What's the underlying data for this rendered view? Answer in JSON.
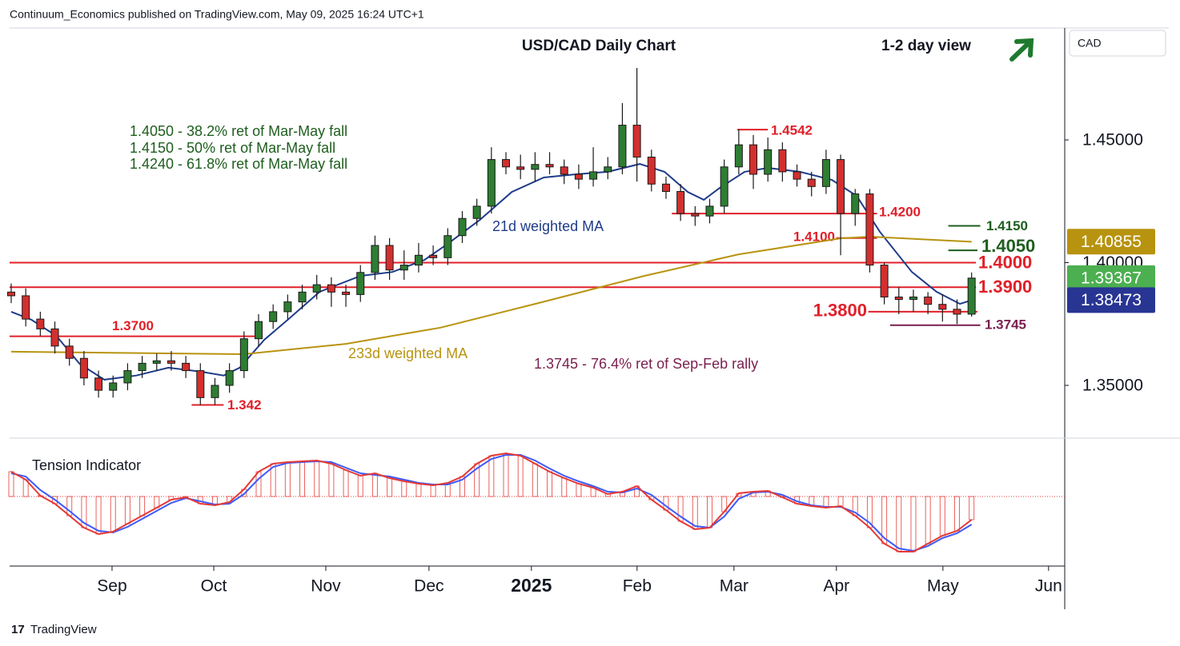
{
  "page": {
    "header": "Continuum_Economics published on TradingView.com, May 09, 2025 16:24 UTC+1",
    "footer": "TradingView"
  },
  "chart_data": [
    {
      "type": "candlestick",
      "title": "USD/CAD Daily Chart",
      "subtitle": "1-2 day view",
      "currency": "CAD",
      "x": [
        0,
        1,
        2,
        3,
        4,
        5,
        6,
        7,
        8,
        9,
        10,
        11,
        12,
        13,
        14,
        15,
        16,
        17,
        18,
        19,
        20,
        21,
        22,
        23,
        24,
        25,
        26,
        27,
        28,
        29,
        30,
        31,
        32,
        33,
        34,
        35,
        36,
        37,
        38,
        39,
        40,
        41,
        42,
        43,
        44,
        45,
        46,
        47,
        48,
        49,
        50,
        51,
        52,
        53,
        54,
        55,
        56,
        57,
        58,
        59,
        60,
        61,
        62,
        63,
        64,
        65,
        66
      ],
      "open": [
        1.388,
        1.3865,
        1.377,
        1.373,
        1.366,
        1.361,
        1.353,
        1.348,
        1.351,
        1.356,
        1.359,
        1.36,
        1.359,
        1.356,
        1.345,
        1.35,
        1.356,
        1.369,
        1.376,
        1.38,
        1.384,
        1.388,
        1.391,
        1.388,
        1.387,
        1.396,
        1.407,
        1.397,
        1.399,
        1.403,
        1.402,
        1.411,
        1.418,
        1.423,
        1.442,
        1.439,
        1.438,
        1.44,
        1.439,
        1.436,
        1.434,
        1.437,
        1.439,
        1.456,
        1.443,
        1.432,
        1.429,
        1.42,
        1.419,
        1.423,
        1.439,
        1.448,
        1.436,
        1.446,
        1.437,
        1.434,
        1.431,
        1.442,
        1.42,
        1.428,
        1.399,
        1.386,
        1.385,
        1.386,
        1.383,
        1.381,
        1.379
      ],
      "high": [
        1.3915,
        1.3895,
        1.38,
        1.376,
        1.369,
        1.364,
        1.356,
        1.354,
        1.359,
        1.362,
        1.363,
        1.364,
        1.362,
        1.359,
        1.353,
        1.359,
        1.372,
        1.379,
        1.383,
        1.387,
        1.391,
        1.395,
        1.394,
        1.391,
        1.399,
        1.411,
        1.41,
        1.405,
        1.408,
        1.407,
        1.414,
        1.421,
        1.426,
        1.447,
        1.445,
        1.444,
        1.445,
        1.445,
        1.442,
        1.44,
        1.447,
        1.443,
        1.465,
        1.4793,
        1.446,
        1.435,
        1.432,
        1.423,
        1.426,
        1.442,
        1.4542,
        1.452,
        1.451,
        1.449,
        1.44,
        1.437,
        1.446,
        1.444,
        1.43,
        1.43,
        1.4,
        1.39,
        1.389,
        1.388,
        1.387,
        1.385,
        1.396
      ],
      "low": [
        1.3835,
        1.374,
        1.37,
        1.363,
        1.358,
        1.35,
        1.345,
        1.345,
        1.348,
        1.353,
        1.356,
        1.356,
        1.353,
        1.342,
        1.342,
        1.347,
        1.353,
        1.366,
        1.373,
        1.377,
        1.381,
        1.385,
        1.382,
        1.382,
        1.384,
        1.393,
        1.393,
        1.393,
        1.396,
        1.399,
        1.399,
        1.408,
        1.415,
        1.42,
        1.436,
        1.434,
        1.433,
        1.436,
        1.432,
        1.43,
        1.431,
        1.434,
        1.436,
        1.433,
        1.429,
        1.426,
        1.417,
        1.415,
        1.416,
        1.42,
        1.436,
        1.43,
        1.433,
        1.433,
        1.431,
        1.427,
        1.428,
        1.403,
        1.415,
        1.396,
        1.383,
        1.379,
        1.38,
        1.379,
        1.376,
        1.375,
        1.378
      ],
      "close": [
        1.3865,
        1.377,
        1.373,
        1.366,
        1.361,
        1.353,
        1.348,
        1.351,
        1.356,
        1.359,
        1.36,
        1.359,
        1.356,
        1.345,
        1.35,
        1.356,
        1.369,
        1.376,
        1.38,
        1.384,
        1.388,
        1.391,
        1.388,
        1.387,
        1.396,
        1.407,
        1.397,
        1.399,
        1.403,
        1.402,
        1.411,
        1.418,
        1.423,
        1.442,
        1.439,
        1.438,
        1.44,
        1.439,
        1.436,
        1.434,
        1.437,
        1.439,
        1.456,
        1.443,
        1.432,
        1.429,
        1.42,
        1.419,
        1.423,
        1.439,
        1.448,
        1.436,
        1.446,
        1.437,
        1.434,
        1.431,
        1.442,
        1.42,
        1.428,
        1.399,
        1.386,
        1.385,
        1.386,
        1.383,
        1.381,
        1.379,
        1.3937
      ],
      "up_color": "#2e7d32",
      "down_color": "#d32f2f",
      "xlim": [
        -0.11,
        72.4
      ],
      "xticks": [
        {
          "value": 6.93,
          "label": "Sep"
        },
        {
          "value": 13.92,
          "label": "Oct"
        },
        {
          "value": 21.62,
          "label": "Nov"
        },
        {
          "value": 28.71,
          "label": "Dec"
        },
        {
          "value": 35.75,
          "label": "2025"
        },
        {
          "value": 43.01,
          "label": "Feb"
        },
        {
          "value": 49.67,
          "label": "Mar"
        },
        {
          "value": 56.71,
          "label": "Apr"
        },
        {
          "value": 64.03,
          "label": "May"
        },
        {
          "value": 71.29,
          "label": "Jun"
        }
      ],
      "ylim": [
        1.3285,
        1.4956
      ],
      "yticks": [
        {
          "value": 1.35,
          "label": "1.35000"
        },
        {
          "value": 1.4,
          "label": "1.40000"
        },
        {
          "value": 1.45,
          "label": "1.45000"
        }
      ],
      "series": [
        {
          "name": "21d weighted MA",
          "color": "#1f3c88",
          "x": [
            0,
            1.4,
            3.1,
            4.7,
            6.4,
            8.6,
            10.8,
            13,
            14.6,
            15.7,
            17.4,
            19,
            21.2,
            24,
            26.2,
            28.4,
            30,
            32.2,
            34.4,
            36.6,
            38.8,
            41,
            43.2,
            44.9,
            46.5,
            47.6,
            48.7,
            50.4,
            52,
            54.2,
            56.4,
            58.1,
            59.7,
            61.9,
            63.6,
            65.2,
            66
          ],
          "values": [
            1.38,
            1.3767,
            1.3702,
            1.3588,
            1.3523,
            1.354,
            1.3572,
            1.3556,
            1.354,
            1.3572,
            1.3686,
            1.3767,
            1.3881,
            1.3946,
            1.3962,
            1.4011,
            1.4077,
            1.4174,
            1.4288,
            1.4347,
            1.436,
            1.437,
            1.4402,
            1.437,
            1.4288,
            1.4256,
            1.4305,
            1.437,
            1.4386,
            1.437,
            1.4337,
            1.4272,
            1.4125,
            1.3962,
            1.3881,
            1.3832,
            1.3847
          ]
        },
        {
          "name": "233d weighted MA",
          "color": "#b8930f",
          "x": [
            0,
            16,
            23,
            29.5,
            36,
            43.5,
            50,
            57,
            59,
            66
          ],
          "values": [
            1.3637,
            1.3627,
            1.3669,
            1.3735,
            1.3832,
            1.3946,
            1.4034,
            1.4099,
            1.4106,
            1.4085
          ]
        }
      ],
      "levels": [
        {
          "value": 1.4542,
          "color": "#e0202a",
          "x": [
            49.9,
            52.0
          ]
        },
        {
          "value": 1.42,
          "label": "1.4200",
          "color": "#e0202a",
          "x": [
            45.4,
            59.5
          ]
        },
        {
          "value": 1.41,
          "label": "1.4100",
          "color": "#e0202a",
          "x": [
            56.7,
            59.5
          ]
        },
        {
          "value": 1.415,
          "label": "1.4150",
          "color": "#1e5e1e",
          "x": [
            64.4,
            66.6
          ]
        },
        {
          "value": 1.405,
          "label": "1.4050",
          "color": "#1e5e1e",
          "x": [
            64.4,
            66.4
          ]
        },
        {
          "value": 1.4,
          "label": "1.4000",
          "color": "#e0202a",
          "x": [
            -0.11,
            66.3
          ]
        },
        {
          "value": 1.39,
          "label": "1.3900",
          "color": "#e0202a",
          "x": [
            -0.11,
            66.3
          ]
        },
        {
          "value": 1.38,
          "label": "1.3800",
          "color": "#e0202a",
          "x": [
            58.9,
            66.4
          ]
        },
        {
          "value": 1.3745,
          "color": "#7a1f4f",
          "x": [
            60.4,
            66.6
          ]
        },
        {
          "value": 1.37,
          "label": "1.3700",
          "color": "#e0202a",
          "x": [
            -0.11,
            16.9
          ]
        },
        {
          "value": 1.342,
          "color": "#e0202a",
          "x": [
            12.4,
            14.6
          ]
        }
      ],
      "annotations": [
        {
          "text": "1.4050 - 38.2% ret of Mar-May fall",
          "color": "#1e5e1e"
        },
        {
          "text": "1.4150 - 50% ret of Mar-May fall",
          "color": "#1e5e1e"
        },
        {
          "text": "1.4240 - 61.8% ret of Mar-May fall",
          "color": "#1e5e1e"
        },
        {
          "text": "1.3745 - 76.4% ret of Sep-Feb rally",
          "color": "#7a1f4f"
        }
      ],
      "price_badges": [
        {
          "value": 1.40855,
          "color": "#b8930f"
        },
        {
          "value": 1.39367,
          "color": "#4caf50"
        },
        {
          "value": 1.38473,
          "color": "#283593"
        }
      ]
    },
    {
      "type": "indicator",
      "title": "Tension Indicator",
      "x": [
        0,
        1,
        2,
        3,
        4,
        5,
        6,
        7,
        8,
        9,
        10,
        11,
        12,
        13,
        14,
        15,
        16,
        17,
        18,
        19,
        20,
        21,
        22,
        23,
        24,
        25,
        26,
        27,
        28,
        29,
        30,
        31,
        32,
        33,
        34,
        35,
        36,
        37,
        38,
        39,
        40,
        41,
        42,
        43,
        44,
        45,
        46,
        47,
        48,
        49,
        50,
        51,
        52,
        53,
        54,
        55,
        56,
        57,
        58,
        59,
        60,
        61,
        62,
        63,
        64,
        65,
        66
      ],
      "xlim": [
        -0.11,
        72.4
      ],
      "ylim": [
        -87,
        71
      ],
      "series": [
        {
          "color": "#e53935",
          "values": [
            31,
            21,
            1,
            -9,
            -24,
            -39,
            -47,
            -44,
            -34,
            -24,
            -14,
            -4,
            -1,
            -9,
            -11,
            -7,
            9,
            31,
            41,
            43,
            44,
            45,
            41,
            33,
            26,
            29,
            23,
            19,
            16,
            14,
            17,
            25,
            41,
            51,
            54,
            51,
            41,
            31,
            23,
            16,
            11,
            3,
            6,
            13,
            -4,
            -17,
            -31,
            -41,
            -39,
            -19,
            4,
            6,
            7,
            -1,
            -9,
            -12,
            -14,
            -12,
            -24,
            -39,
            -59,
            -69,
            -69,
            -59,
            -49,
            -43,
            -29
          ]
        },
        {
          "color": "#3d5afe",
          "values": [
            29,
            25,
            8,
            -4,
            -18,
            -33,
            -43,
            -45,
            -38,
            -28,
            -18,
            -8,
            -2,
            -6,
            -10,
            -9,
            3,
            22,
            37,
            42,
            43,
            44,
            43,
            36,
            29,
            27,
            25,
            21,
            17,
            15,
            15,
            21,
            35,
            47,
            52,
            52,
            45,
            35,
            26,
            19,
            13,
            6,
            5,
            10,
            2,
            -12,
            -25,
            -37,
            -39,
            -25,
            -3,
            5,
            6,
            2,
            -6,
            -11,
            -13,
            -13,
            -20,
            -33,
            -52,
            -65,
            -68,
            -62,
            -52,
            -46,
            -35
          ]
        }
      ],
      "histogram_color": "#e53935"
    }
  ]
}
